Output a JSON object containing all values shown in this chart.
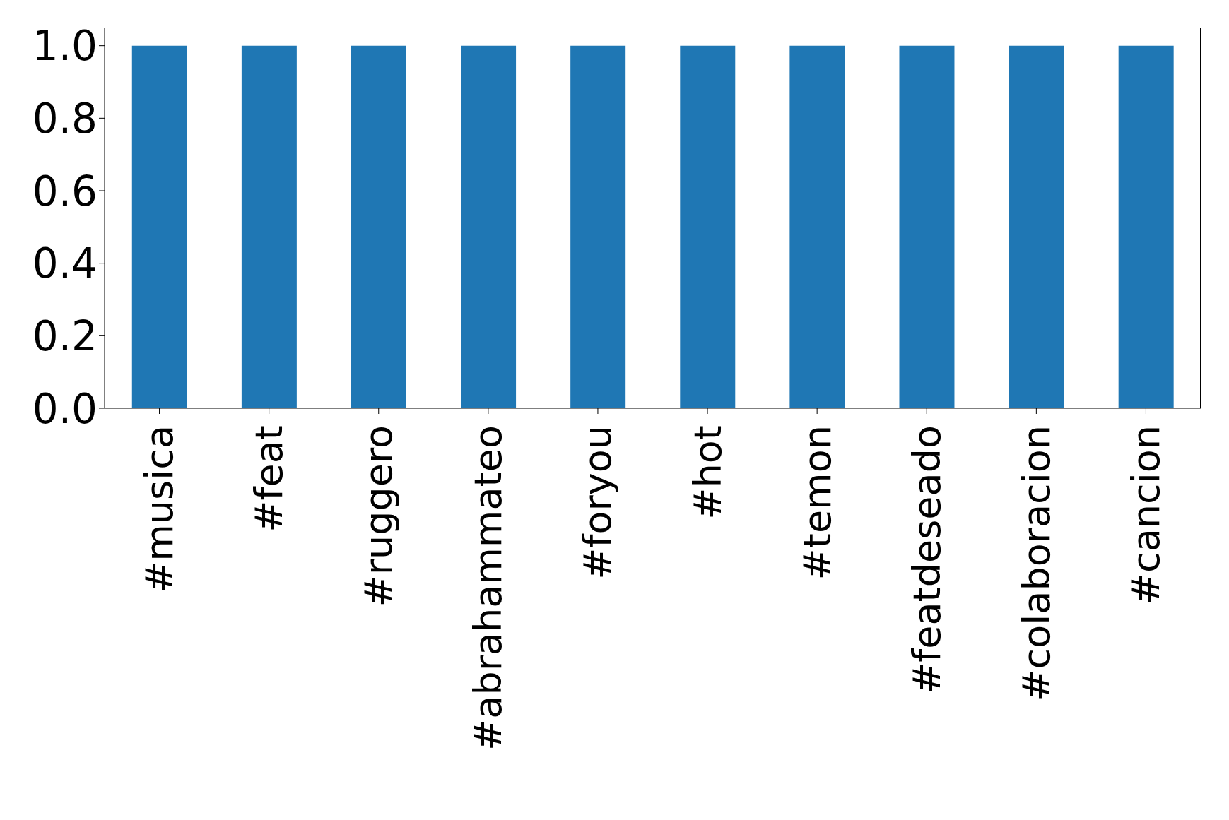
{
  "chart_data": {
    "type": "bar",
    "categories": [
      "#musica",
      "#feat",
      "#ruggero",
      "#abrahammateo",
      "#foryou",
      "#hot",
      "#temon",
      "#featdeseado",
      "#colaboracion",
      "#cancion"
    ],
    "values": [
      1.0,
      1.0,
      1.0,
      1.0,
      1.0,
      1.0,
      1.0,
      1.0,
      1.0,
      1.0
    ],
    "color": "#1f77b4",
    "ylim": [
      0,
      1.05
    ],
    "yticks": [
      {
        "value": 0,
        "label": "0.0"
      },
      0.2,
      0.4,
      0.6,
      0.8,
      {
        "value": 1,
        "label": "1.0"
      }
    ],
    "grid": false,
    "legend": false
  }
}
